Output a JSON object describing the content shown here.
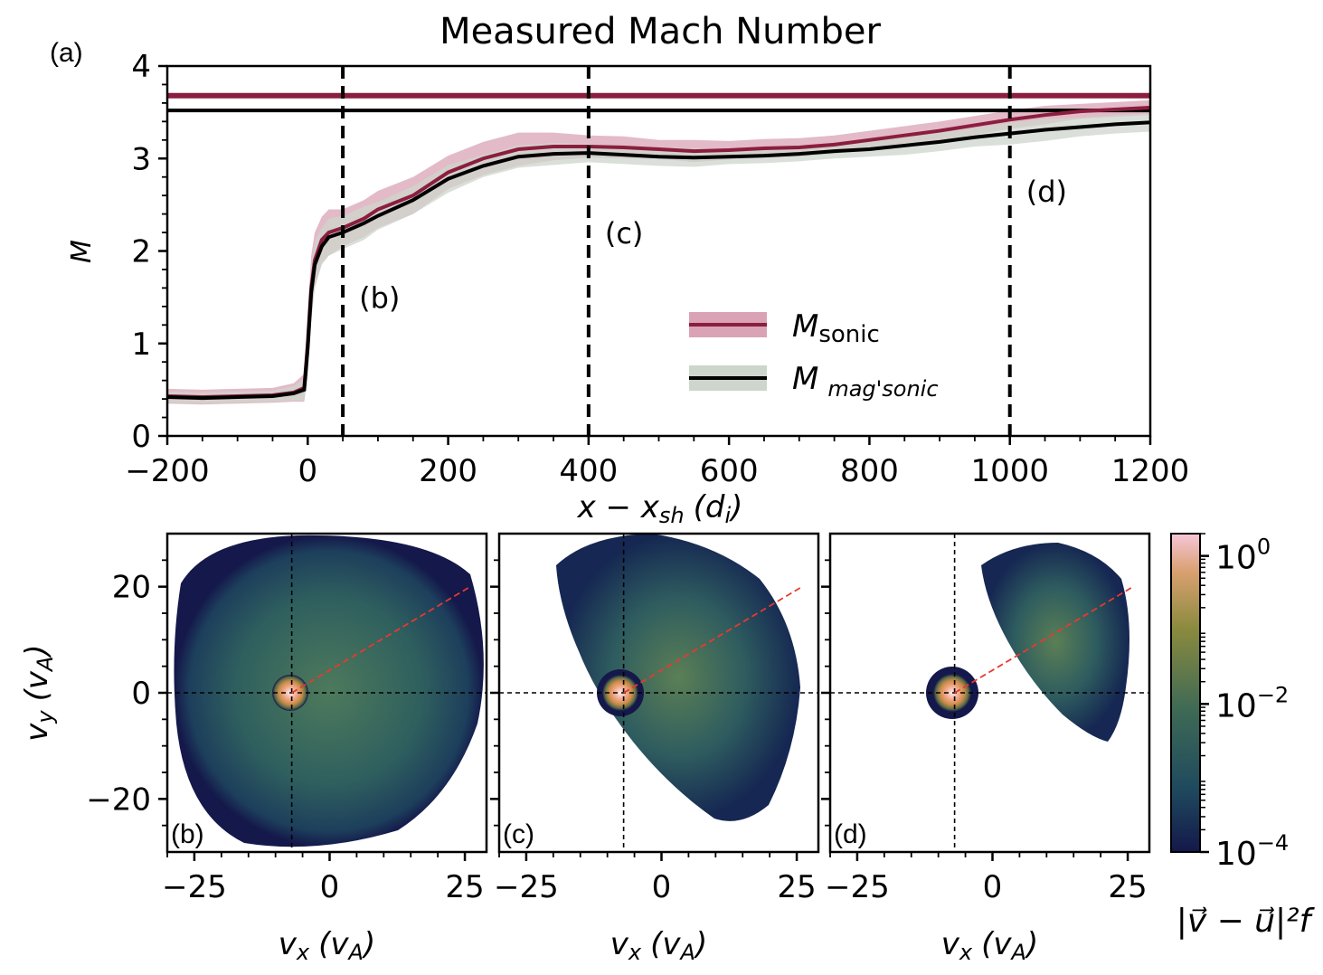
{
  "chart_data": [
    {
      "type": "line",
      "panel_label": "(a)",
      "title": "Measured Mach Number",
      "xlabel": "x − x",
      "xlabel_sub": "sh",
      "xlabel_unit": "(d",
      "xlabel_unit_sub": "i",
      "xlabel_close": ")",
      "ylabel": "M",
      "xlim": [
        -200,
        1200
      ],
      "ylim": [
        0,
        4
      ],
      "xticks": [
        -200,
        0,
        200,
        400,
        600,
        800,
        1000,
        1200
      ],
      "xtick_labels": [
        "−200",
        "0",
        "200",
        "400",
        "600",
        "800",
        "1000",
        "1200"
      ],
      "yticks": [
        0,
        1,
        2,
        3,
        4
      ],
      "ytick_labels": [
        "0",
        "1",
        "2",
        "3",
        "4"
      ],
      "grid": false,
      "legend_position": "center-right",
      "horizontal_lines": [
        {
          "series": "sonic",
          "y": 3.68
        },
        {
          "series": "magsonic",
          "y": 3.52
        }
      ],
      "vertical_markers": [
        {
          "x": 50,
          "label": "(b)",
          "label_y": 1.5
        },
        {
          "x": 400,
          "label": "(c)",
          "label_y": 2.2
        },
        {
          "x": 1000,
          "label": "(d)",
          "label_y": 2.65
        }
      ],
      "series": [
        {
          "name": "M_sonic",
          "legend_label": "M",
          "legend_sub": "sonic",
          "color": "#8b1e3f",
          "band_color": "#d9a3b5",
          "x": [
            -200,
            -150,
            -100,
            -50,
            -20,
            -5,
            0,
            5,
            10,
            20,
            30,
            50,
            80,
            100,
            150,
            200,
            250,
            300,
            350,
            400,
            450,
            500,
            550,
            600,
            650,
            700,
            750,
            800,
            850,
            900,
            950,
            1000,
            1050,
            1100,
            1150,
            1200
          ],
          "y": [
            0.43,
            0.42,
            0.43,
            0.44,
            0.47,
            0.52,
            1.0,
            1.6,
            1.9,
            2.12,
            2.2,
            2.25,
            2.35,
            2.45,
            2.6,
            2.85,
            3.0,
            3.1,
            3.13,
            3.13,
            3.12,
            3.1,
            3.08,
            3.09,
            3.11,
            3.12,
            3.15,
            3.2,
            3.25,
            3.3,
            3.36,
            3.42,
            3.47,
            3.51,
            3.53,
            3.55
          ],
          "band_halfwidth": [
            0.08,
            0.08,
            0.08,
            0.08,
            0.1,
            0.15,
            0.35,
            0.35,
            0.3,
            0.25,
            0.25,
            0.2,
            0.2,
            0.2,
            0.2,
            0.18,
            0.18,
            0.18,
            0.15,
            0.12,
            0.12,
            0.1,
            0.12,
            0.1,
            0.1,
            0.1,
            0.1,
            0.1,
            0.1,
            0.1,
            0.1,
            0.1,
            0.1,
            0.08,
            0.08,
            0.08
          ]
        },
        {
          "name": "M_magsonic",
          "legend_label": "M",
          "legend_sub": "mag'sonic",
          "color": "#000000",
          "band_color": "#cdd5cc",
          "x": [
            -200,
            -150,
            -100,
            -50,
            -20,
            -5,
            0,
            5,
            10,
            20,
            30,
            50,
            80,
            100,
            150,
            200,
            250,
            300,
            350,
            400,
            450,
            500,
            550,
            600,
            650,
            700,
            750,
            800,
            850,
            900,
            950,
            1000,
            1050,
            1100,
            1150,
            1200
          ],
          "y": [
            0.42,
            0.41,
            0.42,
            0.43,
            0.46,
            0.5,
            0.95,
            1.55,
            1.85,
            2.05,
            2.15,
            2.2,
            2.3,
            2.38,
            2.55,
            2.78,
            2.92,
            3.02,
            3.05,
            3.06,
            3.04,
            3.02,
            3.01,
            3.02,
            3.03,
            3.05,
            3.08,
            3.1,
            3.14,
            3.18,
            3.23,
            3.27,
            3.31,
            3.34,
            3.37,
            3.39
          ],
          "band_halfwidth": [
            0.06,
            0.06,
            0.06,
            0.06,
            0.08,
            0.12,
            0.3,
            0.3,
            0.25,
            0.2,
            0.2,
            0.18,
            0.18,
            0.15,
            0.15,
            0.15,
            0.12,
            0.12,
            0.12,
            0.1,
            0.1,
            0.1,
            0.1,
            0.08,
            0.08,
            0.08,
            0.08,
            0.08,
            0.1,
            0.1,
            0.1,
            0.12,
            0.12,
            0.1,
            0.1,
            0.1
          ]
        }
      ]
    },
    {
      "type": "heatmap",
      "panel_label": "(b)",
      "xlabel": "v",
      "xlabel_sub": "x",
      "xlabel_unit": "(v",
      "xlabel_unit_sub": "A",
      "xlabel_close": ")",
      "ylabel": "v",
      "ylabel_sub": "y",
      "ylabel_unit": "(v",
      "ylabel_unit_sub": "A",
      "ylabel_close": ")",
      "xlim": [
        -30,
        29
      ],
      "ylim": [
        -30,
        30
      ],
      "xticks": [
        -25,
        0,
        25
      ],
      "xtick_labels": [
        "−25",
        "0",
        "25"
      ],
      "yticks": [
        -20,
        0,
        20
      ],
      "ytick_labels": [
        "−20",
        "0",
        "20"
      ],
      "upstream_beam_center": [
        -7,
        0
      ],
      "beam_direction_end": [
        26,
        20
      ],
      "color_scale": "log",
      "description_values": {
        "beam_peak": 1.0,
        "background": 0.003
      }
    },
    {
      "type": "heatmap",
      "panel_label": "(c)",
      "xlabel": "v",
      "xlabel_sub": "x",
      "xlabel_unit": "(v",
      "xlabel_unit_sub": "A",
      "xlabel_close": ")",
      "xlim": [
        -30,
        29
      ],
      "ylim": [
        -30,
        30
      ],
      "xticks": [
        -25,
        0,
        25
      ],
      "xtick_labels": [
        "−25",
        "0",
        "25"
      ],
      "upstream_beam_center": [
        -7,
        0
      ],
      "beam_direction_end": [
        26,
        20
      ],
      "color_scale": "log",
      "description_values": {
        "beam_peak": 1.0,
        "background": 0.001
      }
    },
    {
      "type": "heatmap",
      "panel_label": "(d)",
      "xlabel": "v",
      "xlabel_sub": "x",
      "xlabel_unit": "(v",
      "xlabel_unit_sub": "A",
      "xlabel_close": ")",
      "xlim": [
        -30,
        29
      ],
      "ylim": [
        -30,
        30
      ],
      "xticks": [
        -25,
        0,
        25
      ],
      "xtick_labels": [
        "−25",
        "0",
        "25"
      ],
      "upstream_beam_center": [
        -7,
        0
      ],
      "beam_direction_end": [
        26,
        20
      ],
      "color_scale": "log",
      "description_values": {
        "beam_peak": 1.0,
        "background": 0.0005
      }
    }
  ],
  "colorbar": {
    "scale": "log",
    "range": [
      0.0001,
      2
    ],
    "ticks": [
      0.0001,
      0.01,
      1
    ],
    "tick_labels": [
      {
        "base": "10",
        "exp": "−4"
      },
      {
        "base": "10",
        "exp": "−2"
      },
      {
        "base": "10",
        "exp": "0"
      }
    ],
    "colors": [
      "#14184a",
      "#1f4a5e",
      "#3f6a55",
      "#8a8a3e",
      "#d9a070",
      "#f6c6d8"
    ],
    "label": "|v⃗ − u⃗|²f"
  }
}
